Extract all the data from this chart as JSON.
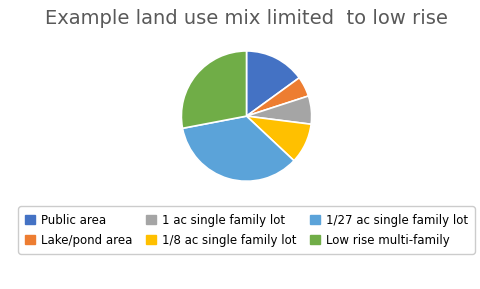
{
  "title": "Example land use mix limited  to low rise",
  "labels": [
    "Public area",
    "Lake/pond area",
    "1 ac single family lot",
    "1/8 ac single family lot",
    "1/27 ac single family lot",
    "Low rise multi-family"
  ],
  "values": [
    15,
    5,
    7,
    10,
    35,
    28
  ],
  "colors": [
    "#4472C4",
    "#ED7D31",
    "#A5A5A5",
    "#FFC000",
    "#5BA3D9",
    "#70AD47"
  ],
  "startangle": 90,
  "background_color": "#FFFFFF",
  "title_fontsize": 14,
  "title_color": "#595959",
  "legend_fontsize": 8.5
}
